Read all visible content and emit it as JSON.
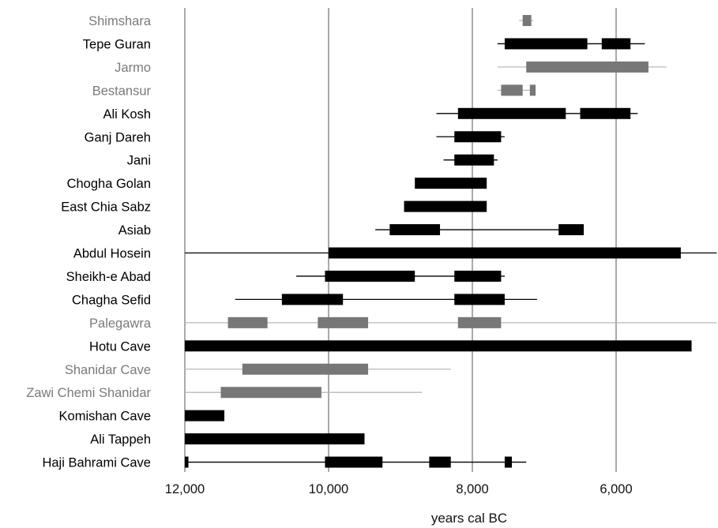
{
  "chart_data": {
    "type": "range-bar",
    "title": "",
    "xlabel": "years cal BC",
    "ylabel": "",
    "x_reversed": true,
    "xlim": [
      12000,
      5000
    ],
    "xticks": [
      12000,
      10000,
      8000,
      6000
    ],
    "xtick_labels": [
      "12,000",
      "10,000",
      "8,000",
      "6,000"
    ],
    "grid": "vertical lines at 12,000, 10,000, 8,000 and 6,000",
    "colors": {
      "black": "#000000",
      "gray": "#777777",
      "gray_line": "#b8b8b8"
    },
    "sites": [
      {
        "name": "Shimshara",
        "color": "gray",
        "lines": [
          [
            7350,
            7150
          ]
        ],
        "bars": [
          [
            7300,
            7180
          ]
        ]
      },
      {
        "name": "Tepe Guran",
        "color": "black",
        "lines": [
          [
            7650,
            5600
          ]
        ],
        "bars": [
          [
            7550,
            6400
          ],
          [
            6200,
            5800
          ]
        ]
      },
      {
        "name": "Jarmo",
        "color": "gray",
        "lines": [
          [
            7650,
            5300
          ]
        ],
        "bars": [
          [
            7250,
            5550
          ]
        ]
      },
      {
        "name": "Bestansur",
        "color": "gray",
        "lines": [
          [
            7650,
            7150
          ]
        ],
        "bars": [
          [
            7600,
            7300
          ],
          [
            7200,
            7120
          ]
        ]
      },
      {
        "name": "Ali Kosh",
        "color": "black",
        "lines": [
          [
            8500,
            5700
          ]
        ],
        "bars": [
          [
            8200,
            6700
          ],
          [
            6500,
            5800
          ]
        ]
      },
      {
        "name": "Ganj Dareh",
        "color": "black",
        "lines": [
          [
            8500,
            7550
          ]
        ],
        "bars": [
          [
            8250,
            7600
          ]
        ]
      },
      {
        "name": "Jani",
        "color": "black",
        "lines": [
          [
            8400,
            7650
          ]
        ],
        "bars": [
          [
            8250,
            7700
          ]
        ]
      },
      {
        "name": "Chogha Golan",
        "color": "black",
        "lines": [],
        "bars": [
          [
            8800,
            7800
          ]
        ]
      },
      {
        "name": "East Chia Sabz",
        "color": "black",
        "lines": [],
        "bars": [
          [
            8950,
            7800
          ]
        ]
      },
      {
        "name": "Asiab",
        "color": "black",
        "lines": [
          [
            9350,
            6450
          ]
        ],
        "bars": [
          [
            9150,
            8450
          ],
          [
            6800,
            6450
          ]
        ]
      },
      {
        "name": "Abdul Hosein",
        "color": "black",
        "lines": [
          [
            12000,
            4600
          ]
        ],
        "bars": [
          [
            10000,
            5100
          ]
        ]
      },
      {
        "name": "Sheikh-e Abad",
        "color": "black",
        "lines": [
          [
            10450,
            7550
          ]
        ],
        "bars": [
          [
            10050,
            8800
          ],
          [
            8250,
            7600
          ]
        ]
      },
      {
        "name": "Chagha Sefid",
        "color": "black",
        "lines": [
          [
            11300,
            7100
          ]
        ],
        "bars": [
          [
            10650,
            9800
          ],
          [
            8250,
            7550
          ]
        ]
      },
      {
        "name": "Palegawra",
        "color": "gray",
        "lines": [
          [
            12000,
            4600
          ]
        ],
        "bars": [
          [
            11400,
            10850
          ],
          [
            10150,
            9450
          ],
          [
            8200,
            7600
          ]
        ]
      },
      {
        "name": "Hotu Cave",
        "color": "black",
        "lines": [],
        "bars": [
          [
            12000,
            4950
          ]
        ]
      },
      {
        "name": "Shanidar Cave",
        "color": "gray",
        "lines": [
          [
            12000,
            8300
          ]
        ],
        "bars": [
          [
            11200,
            9450
          ]
        ]
      },
      {
        "name": "Zawi Chemi Shanidar",
        "color": "gray",
        "lines": [
          [
            12000,
            8700
          ]
        ],
        "bars": [
          [
            11500,
            10100
          ]
        ]
      },
      {
        "name": "Komishan Cave",
        "color": "black",
        "lines": [],
        "bars": [
          [
            12000,
            11450
          ]
        ]
      },
      {
        "name": "Ali Tappeh",
        "color": "black",
        "lines": [],
        "bars": [
          [
            12000,
            9500
          ]
        ]
      },
      {
        "name": "Haji Bahrami Cave",
        "color": "black",
        "lines": [
          [
            12000,
            7250
          ]
        ],
        "bars": [
          [
            12000,
            11950
          ],
          [
            10050,
            9250
          ],
          [
            8600,
            8300
          ],
          [
            7550,
            7450
          ]
        ]
      }
    ]
  }
}
